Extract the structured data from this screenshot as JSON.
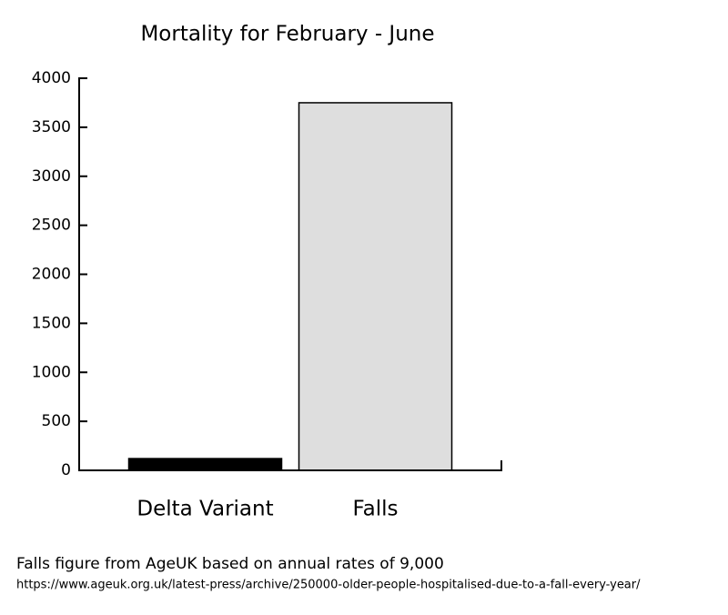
{
  "chart_data": {
    "type": "bar",
    "title": "Mortality for February - June",
    "categories": [
      "Delta Variant",
      "Falls"
    ],
    "values": [
      120,
      3750
    ],
    "colors": [
      "#000000",
      "#dedede"
    ],
    "ylim": [
      0,
      4000
    ],
    "yticks": [
      0,
      500,
      1000,
      1500,
      2000,
      2500,
      3000,
      3500,
      4000
    ],
    "grid": false,
    "annotations": [
      "Falls figure from AgeUK based on annual rates of 9,000",
      "https://www.ageuk.org.uk/latest-press/archive/250000-older-people-hospitalised-due-to-a-fall-every-year/"
    ]
  }
}
